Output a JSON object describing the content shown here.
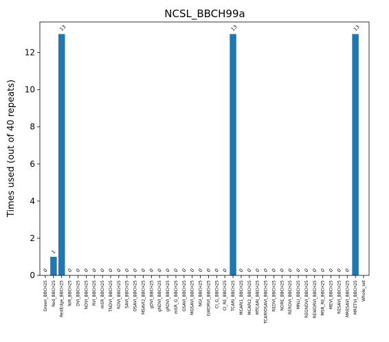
{
  "chart_data": {
    "type": "bar",
    "title": "NCSL_BBCH99a",
    "xlabel": "",
    "ylabel": "Times used (out of 40 repeats)",
    "ylim": [
      0,
      13.65
    ],
    "yticks": [
      0,
      2,
      4,
      6,
      8,
      10,
      12
    ],
    "grid": false,
    "legend": "none",
    "bar_color": "#1f77b4",
    "categories": [
      "Green_BBCH25",
      "Red_BBCH25",
      "RedEdge_BBCH25",
      "NIR_BBCH25",
      "DVI_BBCH25",
      "NDVI_BBCH25",
      "RVI_BBCH25",
      "mSR_BBCH25",
      "TNDVI_BBCH25",
      "RDVI_BBCH25",
      "SAVI_BBCH25",
      "OSAVI_BBCH25",
      "MSAVI2_BBCH25",
      "gDVI_BBCH25",
      "gNDVI_BBCH25",
      "gRDVI_BBCH25",
      "mSR_G_BBCH25",
      "GSAVI_BBCH25",
      "MGSAVI_BBCH25",
      "NGI_BBCH25",
      "GWDRVI_BBCH25",
      "CI_G_BBCH25",
      "CI_RE_BBCH25",
      "TCARI_BBCH25",
      "MCARI1_BBCH25",
      "MCARI2_BBCH25",
      "MTCARI_BBCH25",
      "TCARIOSAVI_BBCH25",
      "REDVI_BBCH25",
      "NDRE_BBCH25",
      "RERDVI_BBCH25",
      "MNLI_BBCH25",
      "REGNDVI_BBCH25",
      "REWDRVI_BBCH25",
      "MSR_RE_BBCH25",
      "MEVI_BBCH25",
      "RESAVI_BBCH25",
      "MRESAVI_BBCH25",
      "MRETVI_BBCH25",
      "Whole_set"
    ],
    "values": [
      0,
      1,
      13,
      0,
      0,
      0,
      0,
      0,
      0,
      0,
      0,
      0,
      0,
      0,
      0,
      0,
      0,
      0,
      0,
      0,
      0,
      0,
      0,
      13,
      0,
      0,
      0,
      0,
      0,
      0,
      0,
      0,
      0,
      0,
      0,
      0,
      0,
      0,
      13,
      null
    ],
    "data_labels": [
      "0",
      "1",
      "13",
      "0",
      "0",
      "0",
      "0",
      "0",
      "0",
      "0",
      "0",
      "0",
      "0",
      "0",
      "0",
      "0",
      "0",
      "0",
      "0",
      "0",
      "0",
      "0",
      "0",
      "13",
      "0",
      "0",
      "0",
      "0",
      "0",
      "0",
      "0",
      "0",
      "0",
      "0",
      "0",
      "0",
      "0",
      "0",
      "13",
      ""
    ]
  }
}
